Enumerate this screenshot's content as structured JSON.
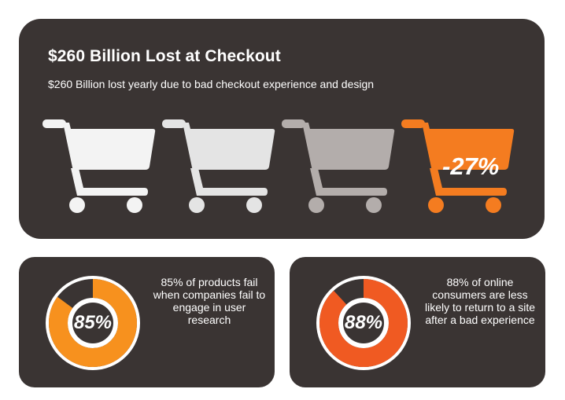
{
  "header": {
    "title": "$260 Billion Lost at Checkout",
    "subtitle": "$260 Billion lost yearly due to bad checkout experience and design"
  },
  "carts": {
    "highlight_label": "-27%",
    "colors": [
      "#f3f3f3",
      "#e4e4e4",
      "#b3adab",
      "#f47c20"
    ],
    "icon": "shopping-cart-icon"
  },
  "stats": [
    {
      "label": "85%",
      "value": 85,
      "text": "85% of products fail when companies fail to engage in user research",
      "color": "#f7911e"
    },
    {
      "label": "88%",
      "value": 88,
      "text": "88% of online consumers are less likely to return to a site after a bad experience",
      "color": "#f05a22"
    }
  ],
  "chart_data": [
    {
      "type": "pie",
      "title": "",
      "categories": [
        "85%",
        ""
      ],
      "values": [
        85,
        15
      ]
    },
    {
      "type": "pie",
      "title": "",
      "categories": [
        "88%",
        ""
      ],
      "values": [
        88,
        12
      ]
    }
  ]
}
